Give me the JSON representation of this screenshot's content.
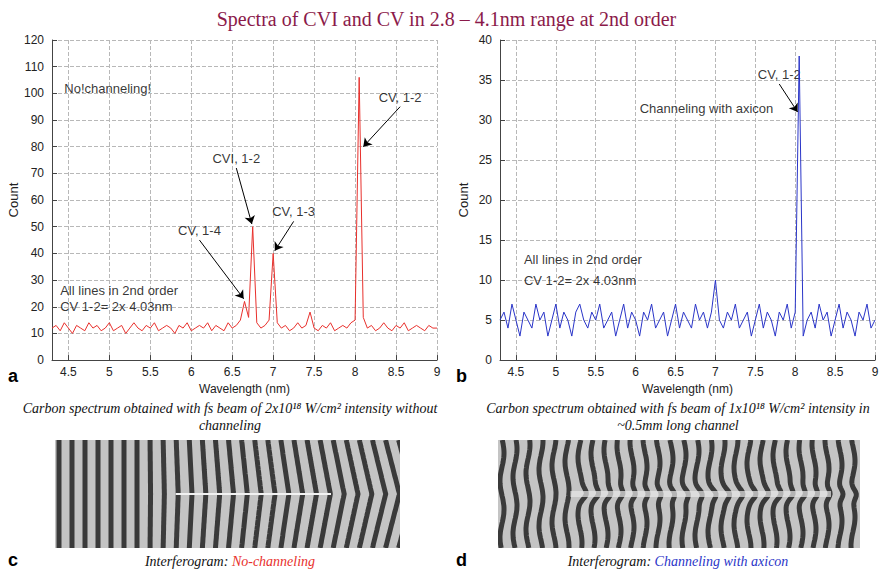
{
  "title": "Spectra of CVI and CV in 2.8 – 4.1nm range at 2nd order",
  "chart_data": [
    {
      "panel": "a",
      "type": "line",
      "caption": "Carbon spectrum obtained with fs beam of 2x10¹⁸ W/cm² intensity without channeling",
      "xlabel": "Wavelength (nm)",
      "ylabel": "Count",
      "xlim": [
        4.3,
        9
      ],
      "xticks": [
        4.5,
        5,
        5.5,
        6,
        6.5,
        7,
        7.5,
        8,
        8.5,
        9
      ],
      "ylim": [
        0,
        120
      ],
      "yticks": [
        0,
        10,
        20,
        30,
        40,
        50,
        60,
        70,
        80,
        90,
        100,
        110,
        120
      ],
      "grid": true,
      "x": [
        4.3,
        4.35,
        4.4,
        4.45,
        4.5,
        4.55,
        4.6,
        4.65,
        4.7,
        4.75,
        4.8,
        4.85,
        4.9,
        4.95,
        5,
        5.05,
        5.1,
        5.15,
        5.2,
        5.25,
        5.3,
        5.35,
        5.4,
        5.45,
        5.5,
        5.55,
        5.6,
        5.65,
        5.7,
        5.75,
        5.8,
        5.85,
        5.9,
        5.95,
        6,
        6.05,
        6.1,
        6.15,
        6.2,
        6.25,
        6.3,
        6.35,
        6.4,
        6.45,
        6.5,
        6.55,
        6.6,
        6.65,
        6.7,
        6.75,
        6.8,
        6.85,
        6.9,
        6.95,
        7,
        7.05,
        7.1,
        7.15,
        7.2,
        7.25,
        7.3,
        7.35,
        7.4,
        7.45,
        7.5,
        7.55,
        7.6,
        7.65,
        7.7,
        7.75,
        7.8,
        7.85,
        7.9,
        7.95,
        8,
        8.05,
        8.1,
        8.15,
        8.2,
        8.25,
        8.3,
        8.35,
        8.4,
        8.45,
        8.5,
        8.55,
        8.6,
        8.65,
        8.7,
        8.75,
        8.8,
        8.85,
        8.9,
        8.95,
        9
      ],
      "series": [
        {
          "color": "#e8302c",
          "line_style": "solid",
          "values": [
            12,
            13,
            11,
            14,
            12,
            10,
            13,
            12,
            11,
            14,
            12,
            13,
            11,
            12,
            14,
            11,
            12,
            13,
            10,
            12,
            14,
            12,
            11,
            13,
            12,
            14,
            11,
            12,
            13,
            12,
            10,
            13,
            12,
            14,
            11,
            12,
            13,
            12,
            14,
            11,
            13,
            12,
            11,
            14,
            12,
            13,
            15,
            22,
            16,
            50,
            14,
            12,
            13,
            15,
            40,
            14,
            12,
            13,
            11,
            12,
            14,
            12,
            13,
            18,
            12,
            11,
            13,
            12,
            14,
            11,
            12,
            13,
            12,
            14,
            15,
            106,
            16,
            12,
            13,
            11,
            12,
            14,
            12,
            11,
            13,
            12,
            14,
            11,
            12,
            13,
            12,
            11,
            13,
            12,
            12
          ]
        }
      ],
      "annotations": [
        {
          "text": "No!channeling!",
          "text_x": 4.45,
          "text_y": 102
        },
        {
          "text": "All lines in 2nd order",
          "text_x": 4.4,
          "text_y": 26
        },
        {
          "text": "CV 1-2= 2x 4.03nm",
          "text_x": 4.4,
          "text_y": 20
        },
        {
          "text": "CV, 1-4",
          "text_x": 6.1,
          "text_y": 45,
          "x": 6.64,
          "y": 23
        },
        {
          "text": "CVI, 1-2",
          "text_x": 6.55,
          "text_y": 72,
          "x": 6.74,
          "y": 51
        },
        {
          "text": "CV, 1-3",
          "text_x": 7.25,
          "text_y": 52,
          "x": 7.02,
          "y": 41
        },
        {
          "text": "CV, 1-2",
          "text_x": 8.55,
          "text_y": 95,
          "x": 8.1,
          "y": 80
        }
      ],
      "interferogram": {
        "panel": "c",
        "caption": "Interferogram: No-channeling"
      }
    },
    {
      "panel": "b",
      "type": "line",
      "caption": "Carbon spectrum obtained with fs beam of 1x10¹⁸ W/cm² intensity in ~0.5mm long channel",
      "xlabel": "Wavelength (nm)",
      "ylabel": "Count",
      "xlim": [
        4.3,
        9
      ],
      "xticks": [
        4.5,
        5,
        5.5,
        6,
        6.5,
        7,
        7.5,
        8,
        8.5,
        9
      ],
      "ylim": [
        0,
        40
      ],
      "yticks": [
        0,
        5,
        10,
        15,
        20,
        25,
        30,
        35,
        40
      ],
      "grid": true,
      "x": [
        4.3,
        4.35,
        4.4,
        4.45,
        4.5,
        4.55,
        4.6,
        4.65,
        4.7,
        4.75,
        4.8,
        4.85,
        4.9,
        4.95,
        5,
        5.05,
        5.1,
        5.15,
        5.2,
        5.25,
        5.3,
        5.35,
        5.4,
        5.45,
        5.5,
        5.55,
        5.6,
        5.65,
        5.7,
        5.75,
        5.8,
        5.85,
        5.9,
        5.95,
        6,
        6.05,
        6.1,
        6.15,
        6.2,
        6.25,
        6.3,
        6.35,
        6.4,
        6.45,
        6.5,
        6.55,
        6.6,
        6.65,
        6.7,
        6.75,
        6.8,
        6.85,
        6.9,
        6.95,
        7,
        7.05,
        7.1,
        7.15,
        7.2,
        7.25,
        7.3,
        7.35,
        7.4,
        7.45,
        7.5,
        7.55,
        7.6,
        7.65,
        7.7,
        7.75,
        7.8,
        7.85,
        7.9,
        7.95,
        8,
        8.05,
        8.1,
        8.15,
        8.2,
        8.25,
        8.3,
        8.35,
        8.4,
        8.45,
        8.5,
        8.55,
        8.6,
        8.65,
        8.7,
        8.75,
        8.8,
        8.85,
        8.9,
        8.95,
        9
      ],
      "series": [
        {
          "color": "#2a35c8",
          "line_style": "solid",
          "values": [
            5,
            6,
            4,
            7,
            5,
            3,
            6,
            5,
            4,
            7,
            5,
            6,
            3,
            5,
            7,
            4,
            6,
            5,
            3,
            6,
            7,
            5,
            4,
            6,
            5,
            7,
            4,
            5,
            6,
            3,
            5,
            7,
            4,
            6,
            5,
            3,
            6,
            5,
            7,
            4,
            5,
            6,
            3,
            5,
            7,
            4,
            6,
            5,
            4,
            7,
            5,
            6,
            4,
            6,
            10,
            5,
            4,
            6,
            5,
            7,
            4,
            5,
            6,
            3,
            5,
            7,
            4,
            6,
            5,
            3,
            6,
            5,
            7,
            4,
            6,
            38,
            3,
            5,
            6,
            4,
            7,
            5,
            6,
            3,
            5,
            7,
            4,
            6,
            5,
            3,
            6,
            5,
            7,
            4,
            5
          ]
        }
      ],
      "annotations": [
        {
          "text": "Channeling with axicon",
          "text_x": 6.05,
          "text_y": 31.5
        },
        {
          "text": "All lines in 2nd order",
          "text_x": 4.6,
          "text_y": 12.6
        },
        {
          "text": "CV 1-2= 2x 4.03nm",
          "text_x": 4.6,
          "text_y": 10
        },
        {
          "text": "CV, 1-2",
          "text_x": 7.8,
          "text_y": 34.5,
          "x": 8.03,
          "y": 31
        }
      ],
      "interferogram": {
        "panel": "d",
        "caption": "Interferogram: Channeling with axicon"
      }
    }
  ]
}
